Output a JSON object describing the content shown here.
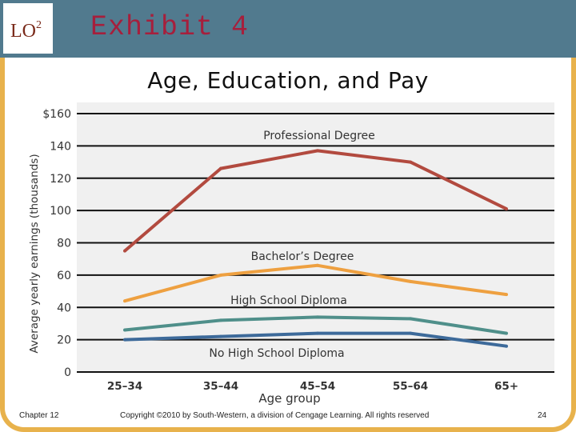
{
  "slide": {
    "lo_label": "LO",
    "lo_number": "2",
    "exhibit_title": "Exhibit 4",
    "footer_chapter": "Chapter 12",
    "footer_copyright": "Copyright ©2010 by South-Western, a division of Cengage Learning.  All rights reserved",
    "footer_page": "24"
  },
  "colors": {
    "header": "#517a8e",
    "frame": "#e8b24c",
    "title": "#a61f3c"
  },
  "chart_data": {
    "type": "line",
    "title": "Age, Education, and Pay",
    "xlabel": "Age group",
    "ylabel": "Average yearly earnings (thousands)",
    "categories": [
      "25–34",
      "35–44",
      "45–54",
      "55–64",
      "65+"
    ],
    "ylim": [
      0,
      160
    ],
    "yticks": [
      "0",
      "20",
      "40",
      "60",
      "80",
      "100",
      "120",
      "140",
      "$160"
    ],
    "grid": true,
    "series": [
      {
        "name": "Professional Degree",
        "color": "#b24a3f",
        "values": [
          75,
          126,
          137,
          130,
          101
        ]
      },
      {
        "name": "Bachelor’s Degree",
        "color": "#eea040",
        "values": [
          44,
          60,
          66,
          56,
          48
        ]
      },
      {
        "name": "High School Diploma",
        "color": "#4f8f8a",
        "values": [
          26,
          32,
          34,
          33,
          24
        ]
      },
      {
        "name": "No High School Diploma",
        "color": "#3d6a9a",
        "values": [
          20,
          22,
          24,
          24,
          16
        ]
      }
    ]
  }
}
